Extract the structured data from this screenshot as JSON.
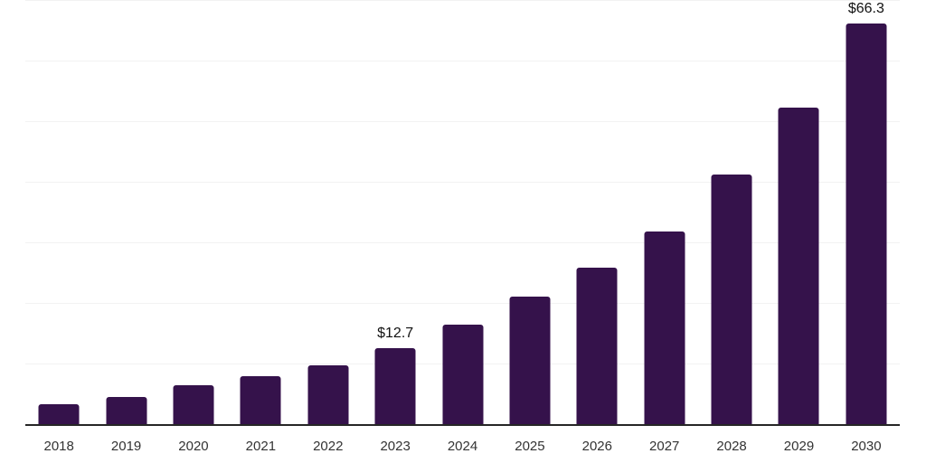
{
  "chart_data": {
    "type": "bar",
    "title": "",
    "xlabel": "",
    "ylabel": "",
    "categories": [
      "2018",
      "2019",
      "2020",
      "2021",
      "2022",
      "2023",
      "2024",
      "2025",
      "2026",
      "2027",
      "2028",
      "2029",
      "2030"
    ],
    "values": [
      3.5,
      4.6,
      6.6,
      8.1,
      9.9,
      12.7,
      16.6,
      21.2,
      26.0,
      31.9,
      41.3,
      52.4,
      66.3
    ],
    "point_labels": [
      "",
      "",
      "",
      "",
      "",
      "$12.7",
      "",
      "",
      "",
      "",
      "",
      "",
      "$66.3"
    ],
    "ylim": [
      0,
      70
    ],
    "grid": true,
    "gridline_step": 10,
    "legend": "none",
    "colors": {
      "bar": "#35124B",
      "axis_line": "#262626",
      "gridline": "#F2F2F2",
      "tick_label": "#333333",
      "data_label": "#111111",
      "background": "#FFFFFF"
    }
  }
}
